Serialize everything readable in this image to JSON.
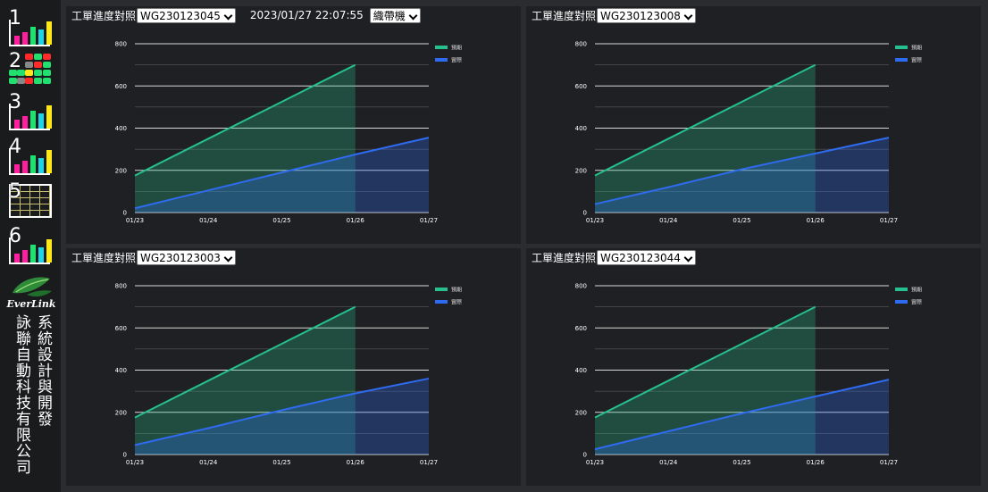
{
  "sidebar": {
    "nav": [
      {
        "num": "1",
        "kind": "bars"
      },
      {
        "num": "2",
        "kind": "grid"
      },
      {
        "num": "3",
        "kind": "bars"
      },
      {
        "num": "4",
        "kind": "bars"
      },
      {
        "num": "5",
        "kind": "table"
      },
      {
        "num": "6",
        "kind": "bars"
      }
    ],
    "brand": "EverLink",
    "company_left": "詠聯自動科技有限公司",
    "company_right": "系統設計與開發"
  },
  "header": {
    "label": "工單進度對照",
    "timestamp": "2023/01/27 22:07:55",
    "machine": "織帶機"
  },
  "colors": {
    "planned": "#26c08c",
    "actual": "#2f6bf0"
  },
  "chart_data": [
    {
      "type": "area",
      "work_order": "WG230123045",
      "x": [
        "01/23",
        "01/24",
        "01/25",
        "01/26",
        "01/27"
      ],
      "series": [
        {
          "name": "預期",
          "values": [
            175,
            350,
            525,
            700,
            null
          ]
        },
        {
          "name": "實際",
          "values": [
            20,
            105,
            190,
            275,
            355
          ]
        }
      ],
      "ylim": [
        0,
        800
      ],
      "yticks": [
        0,
        200,
        400,
        600,
        800
      ]
    },
    {
      "type": "area",
      "work_order": "WG230123008",
      "x": [
        "01/23",
        "01/24",
        "01/25",
        "01/26",
        "01/27"
      ],
      "series": [
        {
          "name": "預期",
          "values": [
            175,
            350,
            525,
            700,
            null
          ]
        },
        {
          "name": "實際",
          "values": [
            40,
            120,
            205,
            280,
            355
          ]
        }
      ],
      "ylim": [
        0,
        800
      ],
      "yticks": [
        0,
        200,
        400,
        600,
        800
      ]
    },
    {
      "type": "area",
      "work_order": "WG230123003",
      "x": [
        "01/23",
        "01/24",
        "01/25",
        "01/26",
        "01/27"
      ],
      "series": [
        {
          "name": "預期",
          "values": [
            175,
            350,
            525,
            700,
            null
          ]
        },
        {
          "name": "實際",
          "values": [
            45,
            125,
            210,
            290,
            360
          ]
        }
      ],
      "ylim": [
        0,
        800
      ],
      "yticks": [
        0,
        200,
        400,
        600,
        800
      ]
    },
    {
      "type": "area",
      "work_order": "WG230123044",
      "x": [
        "01/23",
        "01/24",
        "01/25",
        "01/26",
        "01/27"
      ],
      "series": [
        {
          "name": "預期",
          "values": [
            175,
            350,
            525,
            700,
            null
          ]
        },
        {
          "name": "實際",
          "values": [
            25,
            110,
            195,
            275,
            355
          ]
        }
      ],
      "ylim": [
        0,
        800
      ],
      "yticks": [
        0,
        200,
        400,
        600,
        800
      ]
    }
  ]
}
